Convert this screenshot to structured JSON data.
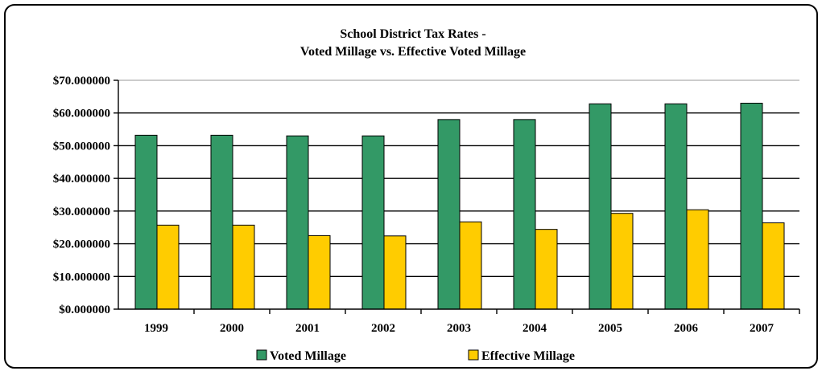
{
  "chart_data": {
    "type": "bar",
    "title": "School District Tax Rates -",
    "subtitle": "Voted Millage vs. Effective Voted Millage",
    "categories": [
      "1999",
      "2000",
      "2001",
      "2002",
      "2003",
      "2004",
      "2005",
      "2006",
      "2007"
    ],
    "series": [
      {
        "name": "Voted Millage",
        "color": "#339966",
        "values": [
          53.2,
          53.2,
          53.0,
          53.0,
          58.0,
          58.0,
          62.8,
          62.8,
          63.0
        ]
      },
      {
        "name": "Effective Millage",
        "color": "#FFCC00",
        "values": [
          25.7,
          25.7,
          22.5,
          22.4,
          26.7,
          24.4,
          29.3,
          30.4,
          26.4
        ]
      }
    ],
    "yticks": [
      "$0.000000",
      "$10.000000",
      "$20.000000",
      "$30.000000",
      "$40.000000",
      "$50.000000",
      "$60.000000",
      "$70.000000"
    ],
    "ylim": [
      0,
      70
    ],
    "grid": true,
    "legend_position": "bottom"
  }
}
